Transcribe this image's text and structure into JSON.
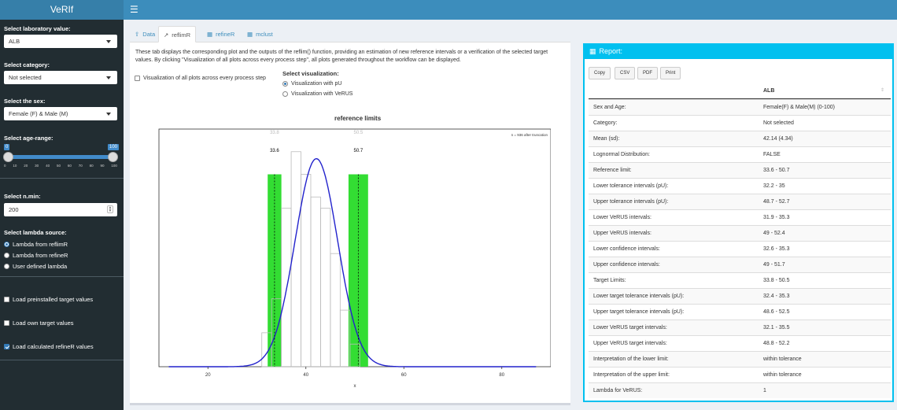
{
  "app": {
    "title": "VeRIf",
    "menu_icon": "hamburger-icon"
  },
  "sidebar": {
    "lab_label": "Select laboratory value:",
    "lab_value": "ALB",
    "category_label": "Select category:",
    "category_value": "Not selected",
    "sex_label": "Select the sex:",
    "sex_value": "Female (F) & Male (M)",
    "age_label": "Select age-range:",
    "age_min": "0",
    "age_max": "100",
    "age_ticks": [
      "0",
      "10",
      "20",
      "30",
      "40",
      "50",
      "60",
      "70",
      "80",
      "90",
      "100"
    ],
    "nmin_label": "Select n.min:",
    "nmin_value": "200",
    "lambda_label": "Select lambda source:",
    "lambda_options": [
      "Lambda from reflimR",
      "Lambda from refineR",
      "User defined lambda"
    ],
    "lambda_selected": 0,
    "checks": [
      {
        "label": "Load preinstalled target values",
        "checked": false
      },
      {
        "label": "Load own target values",
        "checked": false
      },
      {
        "label": "Load calculated refineR values",
        "checked": true
      }
    ]
  },
  "tabs": [
    {
      "label": "Data",
      "icon": "upload-icon"
    },
    {
      "label": "reflimR",
      "icon": "line-chart-icon"
    },
    {
      "label": "refineR",
      "icon": "table-icon"
    },
    {
      "label": "mclust",
      "icon": "table-icon"
    }
  ],
  "active_tab": 1,
  "main": {
    "description": "These tab displays the corresponding plot and the outputs of the reflim() function, providing an estimation of new reference intervals or a verification of the selected target values. By clicking \"Visualization of all plots across every process step\", all plots generated throughout the workflow can be displayed.",
    "all_plots_label": "Visualization of all plots across every process step",
    "vis_title": "Select visualization:",
    "vis_options": [
      "Visualization with pU",
      "Visualization with VeRUS"
    ],
    "vis_selected": 0
  },
  "chart_data": {
    "type": "histogram",
    "title": "reference limits",
    "xlabel": "x",
    "note": "n = 936 after truncation",
    "xlim": [
      10,
      90
    ],
    "ylim": [
      0,
      0.105
    ],
    "x_ticks": [
      20,
      40,
      60,
      80
    ],
    "reference_limits": {
      "lower": 33.6,
      "upper": 50.7,
      "lower_label": "33.6",
      "upper_label": "50.7",
      "lower_target": "33.8",
      "upper_target": "50.5"
    },
    "tolerance_bands": [
      [
        32.2,
        35
      ],
      [
        48.7,
        52.7
      ]
    ],
    "histogram": {
      "bins": [
        [
          31,
          33
        ],
        [
          33,
          35
        ],
        [
          35,
          37
        ],
        [
          37,
          39
        ],
        [
          39,
          41
        ],
        [
          41,
          43
        ],
        [
          43,
          45
        ],
        [
          45,
          47
        ],
        [
          47,
          49
        ],
        [
          49,
          51
        ]
      ],
      "densities": [
        0.015,
        0.03,
        0.07,
        0.095,
        0.085,
        0.075,
        0.07,
        0.05,
        0.025,
        0.01
      ]
    },
    "normal_curve": {
      "mean": 42.14,
      "sd": 4.34
    },
    "colors": {
      "band": "#33dd33",
      "curve": "#2222cc",
      "density": "#dd2222",
      "hist": "#bbbbbb"
    }
  },
  "report": {
    "title": "Report:",
    "icon": "table-icon",
    "buttons": [
      "Copy",
      "CSV",
      "PDF",
      "Print"
    ],
    "column_header": "ALB",
    "rows": [
      [
        "Sex and Age:",
        "Female(F) & Male(M) (0-100)"
      ],
      [
        "Category:",
        "Not selected"
      ],
      [
        "Mean (sd):",
        "42.14 (4.34)"
      ],
      [
        "Lognormal Distribution:",
        "FALSE"
      ],
      [
        "Reference limit:",
        "33.6 - 50.7"
      ],
      [
        "Lower tolerance intervals (pU):",
        "32.2 - 35"
      ],
      [
        "Upper tolerance intervals (pU):",
        "48.7 - 52.7"
      ],
      [
        "Lower VeRUS intervals:",
        "31.9 - 35.3"
      ],
      [
        "Upper VeRUS intervals:",
        "49 - 52.4"
      ],
      [
        "Lower confidence intervals:",
        "32.6 - 35.3"
      ],
      [
        "Upper confidence intervals:",
        "49 - 51.7"
      ],
      [
        "Target Limits:",
        "33.8 - 50.5"
      ],
      [
        "Lower target tolerance intervals (pU):",
        "32.4 - 35.3"
      ],
      [
        "Upper target tolerance intervals (pU):",
        "48.6 - 52.5"
      ],
      [
        "Lower VeRUS target intervals:",
        "32.1 - 35.5"
      ],
      [
        "Upper VeRUS target intervals:",
        "48.8 - 52.2"
      ],
      [
        "Interpretation of the lower limit:",
        "within tolerance"
      ],
      [
        "Interpretation of the upper limit:",
        "within tolerance"
      ],
      [
        "Lambda for VeRUS:",
        "1"
      ]
    ]
  }
}
